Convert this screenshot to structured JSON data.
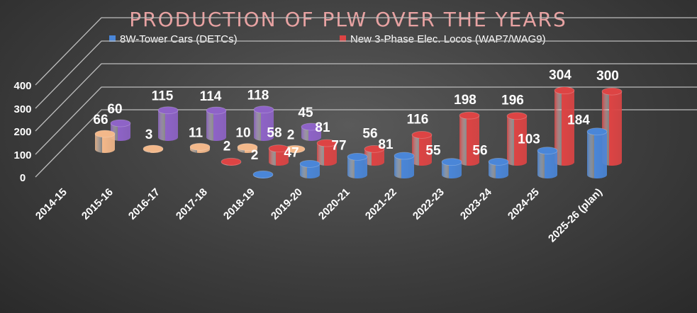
{
  "chart_data": {
    "type": "bar",
    "style": "3d-cylinder",
    "title": "PRODUCTION OF PLW OVER THE YEARS",
    "categories": [
      "2014-15",
      "2015-16",
      "2016-17",
      "2017-18",
      "2018-19",
      "2019-20",
      "2020-21",
      "2021-22",
      "2022-23",
      "2023-24",
      "2024-25",
      "2025-26 (plan)"
    ],
    "yticks": [
      "0",
      "100",
      "200",
      "300",
      "400"
    ],
    "ylim": [
      0,
      400
    ],
    "legend_position": "top",
    "grid": true,
    "series": [
      {
        "name": "8W-Tower Cars (DETCs)",
        "color": "#4a86d8",
        "in_legend": true,
        "values": [
          null,
          null,
          null,
          null,
          2,
          47,
          77,
          81,
          55,
          56,
          103,
          184
        ]
      },
      {
        "name": "New 3-Phase Elec. Locos (WAP7/WAG9)",
        "color": "#dd4444",
        "in_legend": true,
        "values": [
          null,
          null,
          null,
          2,
          58,
          81,
          56,
          116,
          198,
          196,
          304,
          300
        ]
      },
      {
        "name": "",
        "color": "#f3b88a",
        "in_legend": false,
        "values": [
          66,
          3,
          11,
          10,
          2,
          null,
          null,
          null,
          null,
          null,
          null,
          null
        ]
      },
      {
        "name": "",
        "color": "#8e63c7",
        "in_legend": false,
        "values": [
          60,
          115,
          114,
          118,
          45,
          null,
          null,
          null,
          null,
          null,
          null,
          null
        ]
      }
    ]
  }
}
